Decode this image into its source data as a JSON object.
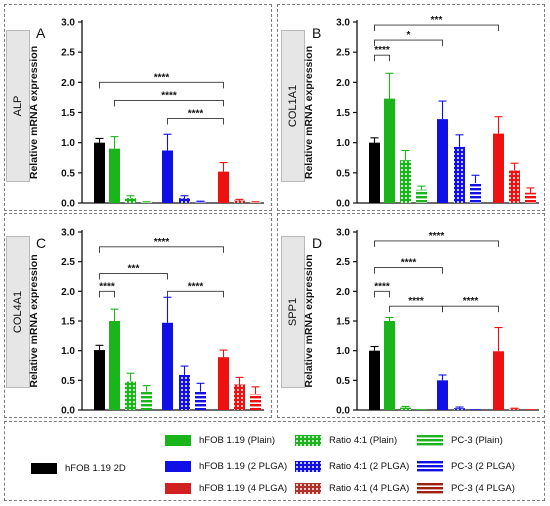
{
  "chart_data": [
    {
      "type": "bar",
      "panel": "A",
      "gene": "ALP",
      "ylabel": "Relative mRNA expression",
      "ylim": [
        0,
        3.0
      ],
      "yticks": [
        "0.0",
        "0.5",
        "1.0",
        "1.5",
        "2.0",
        "2.5",
        "3.0"
      ],
      "values": [
        1.0,
        0.9,
        0.08,
        0.01,
        0.87,
        0.08,
        0.02,
        0.52,
        0.04,
        0.01
      ],
      "errors": [
        0.07,
        0.2,
        0.04,
        0.01,
        0.27,
        0.04,
        0.01,
        0.15,
        0.02,
        0.01
      ],
      "brackets": [
        {
          "from": 0,
          "to": 7,
          "y": 2.0,
          "label": "****"
        },
        {
          "from": 1,
          "to": 7,
          "y": 1.7,
          "label": "****"
        },
        {
          "from": 4,
          "to": 7,
          "y": 1.4,
          "label": "****"
        }
      ]
    },
    {
      "type": "bar",
      "panel": "B",
      "gene": "COL1A1",
      "ylabel": "Relative mRNA expression",
      "ylim": [
        0,
        3.0
      ],
      "yticks": [
        "0.0",
        "0.5",
        "1.0",
        "1.5",
        "2.0",
        "2.5",
        "3.0"
      ],
      "values": [
        1.0,
        1.73,
        0.71,
        0.22,
        1.39,
        0.93,
        0.33,
        1.15,
        0.54,
        0.17
      ],
      "errors": [
        0.08,
        0.42,
        0.16,
        0.06,
        0.3,
        0.2,
        0.13,
        0.28,
        0.12,
        0.08
      ],
      "brackets": [
        {
          "from": 0,
          "to": 1,
          "y": 2.45,
          "label": "****"
        },
        {
          "from": 0,
          "to": 4,
          "y": 2.7,
          "label": "*"
        },
        {
          "from": 0,
          "to": 7,
          "y": 2.95,
          "label": "***"
        }
      ]
    },
    {
      "type": "bar",
      "panel": "C",
      "gene": "COL4A1",
      "ylabel": "Relative mRNA expression",
      "ylim": [
        0,
        3.0
      ],
      "yticks": [
        "0.0",
        "0.5",
        "1.0",
        "1.5",
        "2.0",
        "2.5",
        "3.0"
      ],
      "values": [
        1.01,
        1.5,
        0.48,
        0.31,
        1.47,
        0.59,
        0.31,
        0.89,
        0.43,
        0.27
      ],
      "errors": [
        0.08,
        0.2,
        0.14,
        0.1,
        0.43,
        0.15,
        0.14,
        0.12,
        0.12,
        0.12
      ],
      "brackets": [
        {
          "from": 0,
          "to": 1,
          "y": 2.0,
          "label": "****"
        },
        {
          "from": 0,
          "to": 4,
          "y": 2.3,
          "label": "***"
        },
        {
          "from": 0,
          "to": 7,
          "y": 2.75,
          "label": "****"
        },
        {
          "from": 4,
          "to": 7,
          "y": 2.0,
          "label": "****"
        }
      ]
    },
    {
      "type": "bar",
      "panel": "D",
      "gene": "SPP1",
      "ylabel": "Relative mRNA expression",
      "ylim": [
        0,
        3.0
      ],
      "yticks": [
        "0.0",
        "0.5",
        "1.0",
        "1.5",
        "2.0",
        "2.5",
        "3.0"
      ],
      "values": [
        1.0,
        1.5,
        0.04,
        0.0,
        0.5,
        0.03,
        0.0,
        0.99,
        0.02,
        0.0
      ],
      "errors": [
        0.07,
        0.06,
        0.02,
        0.0,
        0.09,
        0.02,
        0.0,
        0.4,
        0.01,
        0.0
      ],
      "brackets": [
        {
          "from": 0,
          "to": 1,
          "y": 2.0,
          "label": "****"
        },
        {
          "from": 0,
          "to": 4,
          "y": 2.4,
          "label": "****"
        },
        {
          "from": 0,
          "to": 7,
          "y": 2.85,
          "label": "****"
        },
        {
          "from": 1,
          "to": 4,
          "y": 1.75,
          "label": "****"
        },
        {
          "from": 4,
          "to": 7,
          "y": 1.75,
          "label": "****"
        }
      ]
    }
  ],
  "groups": [
    {
      "name": "hFOB 1.19 2D",
      "color": "#000000",
      "pattern": "solid"
    },
    {
      "name": "hFOB 1.19 (Plain)",
      "color": "#1ab51a",
      "pattern": "solid"
    },
    {
      "name": "Ratio 4:1 (Plain)",
      "color": "#1ab51a",
      "pattern": "dots"
    },
    {
      "name": "PC-3 (Plain)",
      "color": "#1ab51a",
      "pattern": "hstripes"
    },
    {
      "name": "hFOB 1.19 (2 PLGA)",
      "color": "#1010e6",
      "pattern": "solid"
    },
    {
      "name": "Ratio 4:1 (2 PLGA)",
      "color": "#1010e6",
      "pattern": "dots"
    },
    {
      "name": "PC-3 (2 PLGA)",
      "color": "#1010e6",
      "pattern": "hstripes"
    },
    {
      "name": "hFOB 1.19 (4 PLGA)",
      "color": "#ee1111",
      "pattern": "solid"
    },
    {
      "name": "Ratio 4:1 (4 PLGA)",
      "color": "#ee1111",
      "pattern": "dots"
    },
    {
      "name": "PC-3 (4 PLGA)",
      "color": "#ee1111",
      "pattern": "hstripes"
    }
  ],
  "legend_highlights": {
    "hFOB 1.19 (Plain)": "#c8f4f4",
    "hFOB 1.19 (4 PLGA)": "#f8d6ec",
    "Ratio 4:1 (4 PLGA)": "#f8d6ec"
  },
  "legend_swatch_colors": {
    "hFOB 1.19 (4 PLGA)": "#d02020",
    "Ratio 4:1 (4 PLGA)": "#b0302a",
    "PC-3 (4 PLGA)": "#a02010"
  }
}
